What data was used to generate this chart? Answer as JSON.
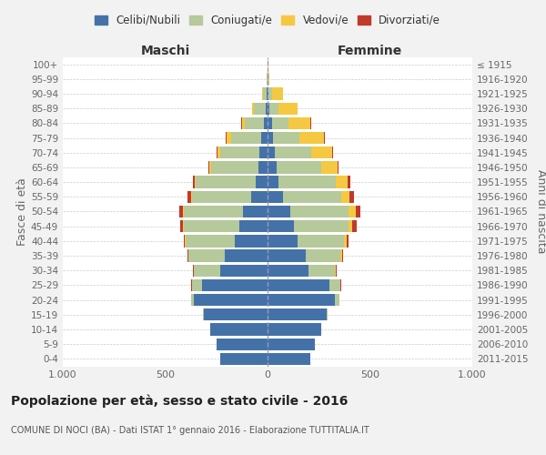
{
  "age_groups": [
    "0-4",
    "5-9",
    "10-14",
    "15-19",
    "20-24",
    "25-29",
    "30-34",
    "35-39",
    "40-44",
    "45-49",
    "50-54",
    "55-59",
    "60-64",
    "65-69",
    "70-74",
    "75-79",
    "80-84",
    "85-89",
    "90-94",
    "95-99",
    "100+"
  ],
  "birth_years": [
    "2011-2015",
    "2006-2010",
    "2001-2005",
    "1996-2000",
    "1991-1995",
    "1986-1990",
    "1981-1985",
    "1976-1980",
    "1971-1975",
    "1966-1970",
    "1961-1965",
    "1956-1960",
    "1951-1955",
    "1946-1950",
    "1941-1945",
    "1936-1940",
    "1931-1935",
    "1926-1930",
    "1921-1925",
    "1916-1920",
    "≤ 1915"
  ],
  "maschi_celibi": [
    230,
    250,
    280,
    310,
    360,
    320,
    230,
    210,
    160,
    140,
    120,
    80,
    60,
    45,
    40,
    30,
    20,
    10,
    5,
    2,
    2
  ],
  "maschi_coniugati": [
    0,
    0,
    2,
    5,
    15,
    50,
    130,
    175,
    240,
    270,
    290,
    290,
    290,
    230,
    190,
    150,
    90,
    55,
    18,
    2,
    0
  ],
  "maschi_vedovi": [
    0,
    0,
    0,
    0,
    0,
    1,
    1,
    2,
    3,
    5,
    5,
    5,
    5,
    10,
    15,
    20,
    15,
    12,
    5,
    0,
    0
  ],
  "maschi_divorziati": [
    0,
    0,
    0,
    0,
    0,
    1,
    3,
    5,
    8,
    10,
    15,
    15,
    10,
    5,
    5,
    5,
    2,
    0,
    0,
    0,
    0
  ],
  "femmine_nubili": [
    210,
    230,
    260,
    290,
    330,
    300,
    200,
    185,
    145,
    130,
    110,
    75,
    55,
    45,
    35,
    25,
    20,
    10,
    5,
    2,
    2
  ],
  "femmine_coniugate": [
    0,
    0,
    2,
    5,
    20,
    55,
    130,
    170,
    230,
    265,
    285,
    285,
    280,
    215,
    180,
    130,
    80,
    45,
    15,
    2,
    0
  ],
  "femmine_vedove": [
    0,
    0,
    0,
    0,
    1,
    2,
    3,
    8,
    10,
    20,
    35,
    40,
    55,
    80,
    100,
    120,
    110,
    90,
    55,
    5,
    2
  ],
  "femmine_divorziate": [
    0,
    0,
    0,
    0,
    0,
    1,
    3,
    8,
    12,
    20,
    25,
    20,
    15,
    5,
    5,
    5,
    2,
    2,
    0,
    0,
    0
  ],
  "color_celibi": "#4472a8",
  "color_coniugati": "#b5c99a",
  "color_vedovi": "#f5c842",
  "color_divorziati": "#c0392b",
  "xlim": 1000,
  "title": "Popolazione per età, sesso e stato civile - 2016",
  "subtitle": "COMUNE DI NOCI (BA) - Dati ISTAT 1° gennaio 2016 - Elaborazione TUTTITALIA.IT",
  "label_maschi": "Maschi",
  "label_femmine": "Femmine",
  "ylabel_left": "Fasce di età",
  "ylabel_right": "Anni di nascita",
  "legend_labels": [
    "Celibi/Nubili",
    "Coniugati/e",
    "Vedovi/e",
    "Divorziati/e"
  ],
  "bg_color": "#f2f2f2",
  "plot_bg": "#ffffff"
}
